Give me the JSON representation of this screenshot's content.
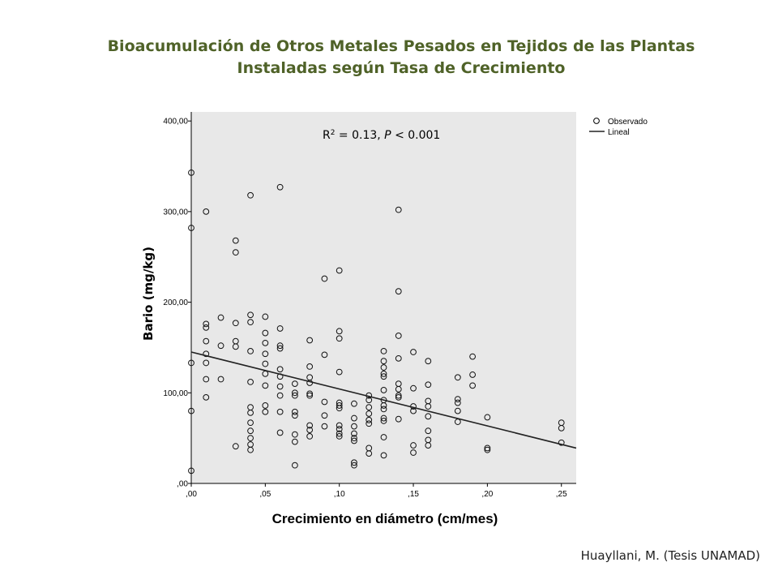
{
  "page": {
    "title_line1": "Bioacumulación de Otros Metales Pesados en Tejidos de las Plantas",
    "title_line2": "Instaladas según Tasa de Crecimiento",
    "title_color": "#4f6228",
    "credit": "Huayllani, M. (Tesis UNAMAD)"
  },
  "chart_data": {
    "type": "scatter",
    "xlabel": "Crecimiento en diámetro (cm/mes)",
    "ylabel": "Bario (mg/kg)",
    "xlim": [
      0,
      0.26
    ],
    "ylim": [
      0,
      410
    ],
    "x_ticks": [
      0,
      0.05,
      0.1,
      0.15,
      0.2,
      0.25
    ],
    "x_tick_labels": [
      ",00",
      ",05",
      ",10",
      ",15",
      ",20",
      ",25"
    ],
    "y_ticks": [
      0,
      100,
      200,
      300,
      400
    ],
    "y_tick_labels": [
      ",00",
      "100,00",
      "200,00",
      "300,00",
      "400,00"
    ],
    "plot_background": "#e8e8e8",
    "grid": false,
    "legend": {
      "position": "top-right",
      "entries": [
        {
          "label": "Observado",
          "marker": "circle"
        },
        {
          "label": "Lineal",
          "marker": "line"
        }
      ]
    },
    "annotation": {
      "r2_prefix": "R",
      "r2_sup": "2",
      "r2_value": " = 0.13, ",
      "p_label": "P",
      "p_value": " < 0.001"
    },
    "fit_line": {
      "x": [
        0,
        0.26
      ],
      "y": [
        145,
        39
      ]
    },
    "points": [
      [
        0.0,
        343
      ],
      [
        0.0,
        282
      ],
      [
        0.0,
        133
      ],
      [
        0.0,
        80
      ],
      [
        0.0,
        14
      ],
      [
        0.01,
        300
      ],
      [
        0.01,
        176
      ],
      [
        0.01,
        172
      ],
      [
        0.01,
        157
      ],
      [
        0.01,
        143
      ],
      [
        0.01,
        133
      ],
      [
        0.01,
        115
      ],
      [
        0.01,
        95
      ],
      [
        0.02,
        183
      ],
      [
        0.02,
        152
      ],
      [
        0.02,
        115
      ],
      [
        0.03,
        268
      ],
      [
        0.03,
        255
      ],
      [
        0.03,
        177
      ],
      [
        0.03,
        157
      ],
      [
        0.03,
        151
      ],
      [
        0.03,
        41
      ],
      [
        0.04,
        318
      ],
      [
        0.04,
        186
      ],
      [
        0.04,
        178
      ],
      [
        0.04,
        146
      ],
      [
        0.04,
        112
      ],
      [
        0.04,
        84
      ],
      [
        0.04,
        78
      ],
      [
        0.04,
        67
      ],
      [
        0.04,
        58
      ],
      [
        0.04,
        50
      ],
      [
        0.04,
        43
      ],
      [
        0.04,
        37
      ],
      [
        0.05,
        184
      ],
      [
        0.05,
        166
      ],
      [
        0.05,
        155
      ],
      [
        0.05,
        143
      ],
      [
        0.05,
        132
      ],
      [
        0.05,
        121
      ],
      [
        0.05,
        108
      ],
      [
        0.05,
        86
      ],
      [
        0.05,
        79
      ],
      [
        0.06,
        327
      ],
      [
        0.06,
        171
      ],
      [
        0.06,
        152
      ],
      [
        0.06,
        149
      ],
      [
        0.06,
        126
      ],
      [
        0.06,
        118
      ],
      [
        0.06,
        107
      ],
      [
        0.06,
        97
      ],
      [
        0.06,
        79
      ],
      [
        0.06,
        56
      ],
      [
        0.07,
        110
      ],
      [
        0.07,
        100
      ],
      [
        0.07,
        97
      ],
      [
        0.07,
        79
      ],
      [
        0.07,
        75
      ],
      [
        0.07,
        54
      ],
      [
        0.07,
        46
      ],
      [
        0.07,
        20
      ],
      [
        0.08,
        158
      ],
      [
        0.08,
        129
      ],
      [
        0.08,
        117
      ],
      [
        0.08,
        111
      ],
      [
        0.08,
        99
      ],
      [
        0.08,
        97
      ],
      [
        0.08,
        64
      ],
      [
        0.08,
        59
      ],
      [
        0.08,
        52
      ],
      [
        0.09,
        226
      ],
      [
        0.09,
        142
      ],
      [
        0.09,
        90
      ],
      [
        0.09,
        75
      ],
      [
        0.09,
        63
      ],
      [
        0.1,
        235
      ],
      [
        0.1,
        168
      ],
      [
        0.1,
        160
      ],
      [
        0.1,
        123
      ],
      [
        0.1,
        89
      ],
      [
        0.1,
        86
      ],
      [
        0.1,
        83
      ],
      [
        0.1,
        64
      ],
      [
        0.1,
        60
      ],
      [
        0.1,
        55
      ],
      [
        0.1,
        52
      ],
      [
        0.11,
        88
      ],
      [
        0.11,
        72
      ],
      [
        0.11,
        63
      ],
      [
        0.11,
        55
      ],
      [
        0.11,
        50
      ],
      [
        0.11,
        47
      ],
      [
        0.11,
        23
      ],
      [
        0.11,
        20
      ],
      [
        0.12,
        97
      ],
      [
        0.12,
        92
      ],
      [
        0.12,
        84
      ],
      [
        0.12,
        77
      ],
      [
        0.12,
        70
      ],
      [
        0.12,
        66
      ],
      [
        0.12,
        39
      ],
      [
        0.12,
        33
      ],
      [
        0.13,
        146
      ],
      [
        0.13,
        135
      ],
      [
        0.13,
        128
      ],
      [
        0.13,
        121
      ],
      [
        0.13,
        118
      ],
      [
        0.13,
        103
      ],
      [
        0.13,
        92
      ],
      [
        0.13,
        86
      ],
      [
        0.13,
        82
      ],
      [
        0.13,
        72
      ],
      [
        0.13,
        69
      ],
      [
        0.13,
        51
      ],
      [
        0.13,
        31
      ],
      [
        0.14,
        302
      ],
      [
        0.14,
        212
      ],
      [
        0.14,
        163
      ],
      [
        0.14,
        138
      ],
      [
        0.14,
        110
      ],
      [
        0.14,
        104
      ],
      [
        0.14,
        97
      ],
      [
        0.14,
        95
      ],
      [
        0.14,
        71
      ],
      [
        0.15,
        145
      ],
      [
        0.15,
        105
      ],
      [
        0.15,
        85
      ],
      [
        0.15,
        80
      ],
      [
        0.15,
        42
      ],
      [
        0.15,
        34
      ],
      [
        0.16,
        135
      ],
      [
        0.16,
        109
      ],
      [
        0.16,
        91
      ],
      [
        0.16,
        85
      ],
      [
        0.16,
        74
      ],
      [
        0.16,
        58
      ],
      [
        0.16,
        48
      ],
      [
        0.16,
        42
      ],
      [
        0.18,
        117
      ],
      [
        0.18,
        93
      ],
      [
        0.18,
        89
      ],
      [
        0.18,
        80
      ],
      [
        0.18,
        68
      ],
      [
        0.19,
        140
      ],
      [
        0.19,
        120
      ],
      [
        0.19,
        108
      ],
      [
        0.2,
        73
      ],
      [
        0.2,
        39
      ],
      [
        0.2,
        37
      ],
      [
        0.25,
        67
      ],
      [
        0.25,
        61
      ],
      [
        0.25,
        45
      ]
    ]
  }
}
